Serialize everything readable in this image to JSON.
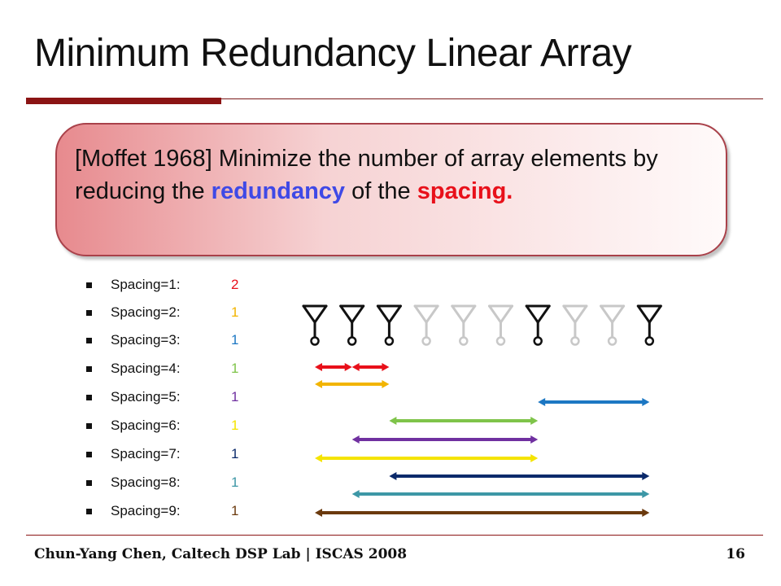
{
  "slide": {
    "title": "Minimum Redundancy Linear Array",
    "callout": {
      "part1": "[Moffet 1968] Minimize the number of array elements by reducing the ",
      "keyword1": "redundancy",
      "part2": " of the ",
      "keyword2": "spacing."
    },
    "spacings": [
      {
        "label": "Spacing=1:",
        "count": "2",
        "color": "#e8101a"
      },
      {
        "label": "Spacing=2:",
        "count": "1",
        "color": "#f2b400"
      },
      {
        "label": "Spacing=3:",
        "count": "1",
        "color": "#1c77c3"
      },
      {
        "label": "Spacing=4:",
        "count": "1",
        "color": "#7fc44a"
      },
      {
        "label": "Spacing=5:",
        "count": "1",
        "color": "#7030a0"
      },
      {
        "label": "Spacing=6:",
        "count": "1",
        "color": "#f5e400"
      },
      {
        "label": "Spacing=7:",
        "count": "1",
        "color": "#0b2a6b"
      },
      {
        "label": "Spacing=8:",
        "count": "1",
        "color": "#3d97a6"
      },
      {
        "label": "Spacing=9:",
        "count": "1",
        "color": "#6b3a0e"
      }
    ],
    "array": {
      "elements": [
        {
          "position": 0,
          "active": true
        },
        {
          "position": 1,
          "active": true
        },
        {
          "position": 2,
          "active": true
        },
        {
          "position": 3,
          "active": false
        },
        {
          "position": 4,
          "active": false
        },
        {
          "position": 5,
          "active": false
        },
        {
          "position": 6,
          "active": true
        },
        {
          "position": 7,
          "active": false
        },
        {
          "position": 8,
          "active": false
        },
        {
          "position": 9,
          "active": true
        }
      ],
      "active_color": "#111111",
      "inactive_color": "#c8c8c8"
    },
    "arrows": [
      {
        "from": 0,
        "to": 1,
        "color": "#e8101a"
      },
      {
        "from": 1,
        "to": 2,
        "color": "#e8101a"
      },
      {
        "from": 0,
        "to": 2,
        "color": "#f2b400"
      },
      {
        "from": 6,
        "to": 9,
        "color": "#1c77c3"
      },
      {
        "from": 2,
        "to": 6,
        "color": "#7fc44a"
      },
      {
        "from": 1,
        "to": 6,
        "color": "#7030a0"
      },
      {
        "from": 0,
        "to": 6,
        "color": "#f5e400"
      },
      {
        "from": 2,
        "to": 9,
        "color": "#0b2a6b"
      },
      {
        "from": 1,
        "to": 9,
        "color": "#3d97a6"
      },
      {
        "from": 0,
        "to": 9,
        "color": "#6b3a0e"
      }
    ],
    "footer": {
      "text": "Chun-Yang Chen, Caltech DSP Lab | ISCAS 2008",
      "page": "16"
    }
  }
}
